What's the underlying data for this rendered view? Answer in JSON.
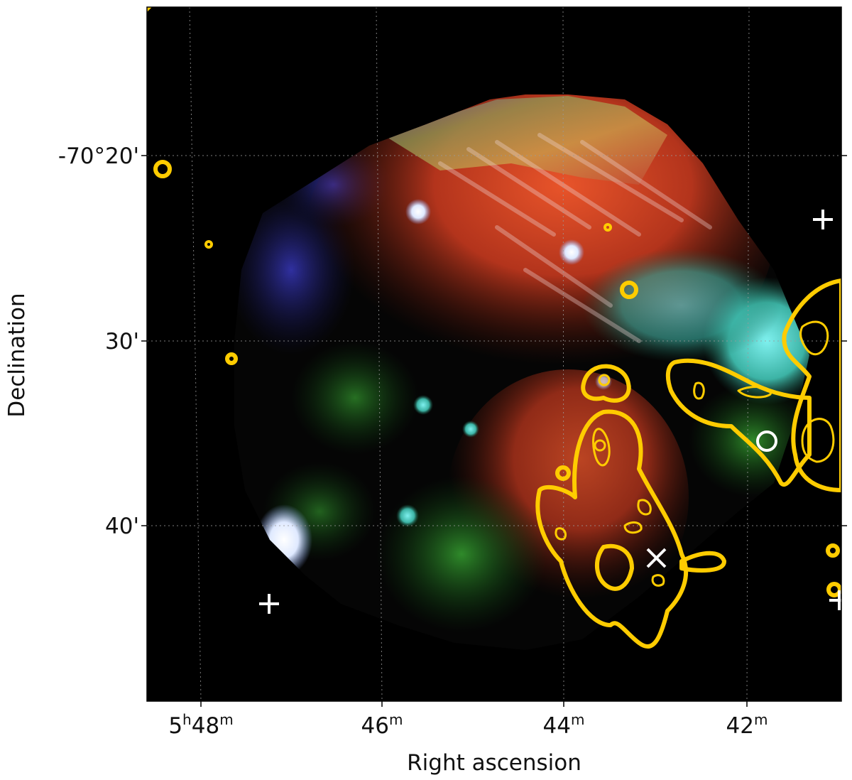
{
  "figure": {
    "x_axis": {
      "title": "Right ascension",
      "ticks": [
        {
          "hours": "5",
          "h_unit": "h",
          "minutes": "48",
          "m_unit": "m"
        },
        {
          "minutes": "46",
          "m_unit": "m"
        },
        {
          "minutes": "44",
          "m_unit": "m"
        },
        {
          "minutes": "42",
          "m_unit": "m"
        }
      ]
    },
    "y_axis": {
      "title": "Declination",
      "ticks": [
        "-70°20'",
        "30'",
        "40'"
      ]
    },
    "grid": "dotted",
    "colors": {
      "contour": "#ffcc00",
      "marker": "#ffffff",
      "background": "#000000"
    },
    "image_description_type": "rgb-composite",
    "markers": [
      {
        "symbol": "plus"
      },
      {
        "symbol": "plus"
      },
      {
        "symbol": "plus"
      },
      {
        "symbol": "cross"
      },
      {
        "symbol": "circle"
      }
    ]
  }
}
